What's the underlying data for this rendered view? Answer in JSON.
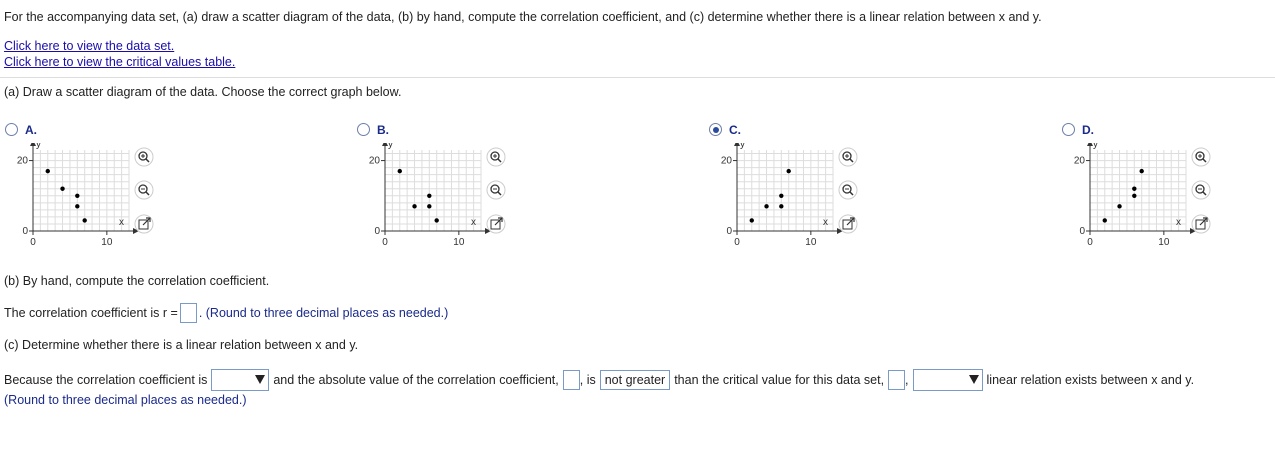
{
  "question": "For the accompanying data set, (a) draw a scatter diagram of the data, (b) by hand, compute the correlation coefficient, and (c) determine whether there is a linear relation between x and y.",
  "links": [
    "Click here to view the data set.",
    "Click here to view the critical values table."
  ],
  "part_a": {
    "prompt": "(a) Draw a scatter diagram of the data. Choose the correct graph below.",
    "axes": {
      "xlim": [
        0,
        13
      ],
      "ylim": [
        0,
        23
      ],
      "xticks": [
        0,
        10
      ],
      "yticks": [
        0,
        20
      ],
      "x_label": "x",
      "y_label": "y"
    },
    "options": [
      {
        "label": "A.",
        "selected": false,
        "x": [
          2,
          4,
          6,
          6,
          7
        ],
        "y": [
          17,
          12,
          10,
          7,
          3
        ]
      },
      {
        "label": "B.",
        "selected": false,
        "x": [
          2,
          4,
          6,
          6,
          7
        ],
        "y": [
          17,
          7,
          10,
          7,
          3
        ]
      },
      {
        "label": "C.",
        "selected": true,
        "x": [
          2,
          4,
          6,
          6,
          7
        ],
        "y": [
          3,
          7,
          10,
          7,
          17
        ]
      },
      {
        "label": "D.",
        "selected": false,
        "x": [
          2,
          4,
          6,
          6,
          7
        ],
        "y": [
          3,
          7,
          12,
          10,
          17
        ]
      }
    ]
  },
  "part_b": {
    "prompt": "(b) By hand, compute the correlation coefficient.",
    "sentence": "The correlation coefficient is r =",
    "note": ". (Round to three decimal places as needed.)"
  },
  "part_c": {
    "prompt": "(c) Determine whether there is a linear relation between x and y.",
    "text1": "Because the correlation coefficient is",
    "text2": "and the absolute value of the correlation coefficient,",
    "text3": ", is",
    "choice": "not greater",
    "text4": "than the critical value for this data set,",
    "text5": ",",
    "text6": "linear relation exists between x and y.",
    "note": "(Round to three decimal places as needed.)"
  }
}
